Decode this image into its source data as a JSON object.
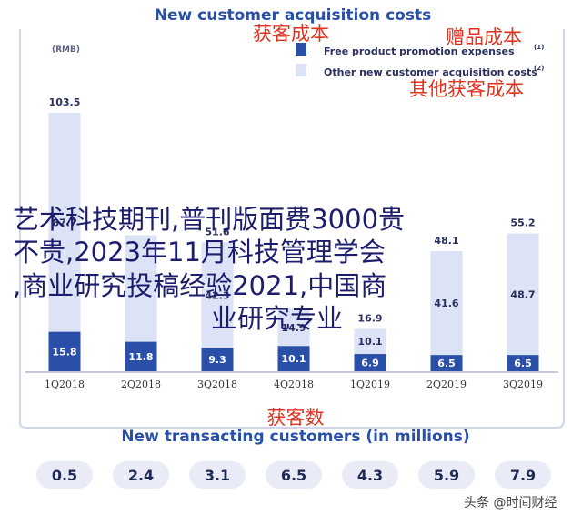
{
  "chart_data": [
    {
      "type": "bar",
      "title": "New customer acquisition costs",
      "title_cn": "获客成本",
      "unit": "(RMB)",
      "stacked": true,
      "categories": [
        "1Q2018",
        "2Q2018",
        "3Q2018",
        "4Q2018",
        "1Q2019",
        "2Q2019",
        "3Q2019"
      ],
      "series": [
        {
          "name": "Free product promotion expenses",
          "name_cn": "赠品成本",
          "superscript": "(1)",
          "color": "#2a4fa8",
          "values": [
            15.8,
            11.8,
            9.3,
            10.1,
            6.9,
            6.5,
            6.5
          ]
        },
        {
          "name": "Other new customer acquisition costs",
          "name_cn": "其他获客成本",
          "superscript": "(2)",
          "color": "#dde3f7",
          "values": [
            87.7,
            42.7,
            42.3,
            14.9,
            10.1,
            41.6,
            48.7
          ]
        }
      ],
      "totals": [
        103.5,
        54.5,
        51.6,
        25.0,
        16.9,
        48.1,
        55.2
      ],
      "total_labels": [
        "103.5",
        "",
        "51.6",
        "",
        "16.9",
        "48.1",
        "55.2"
      ],
      "other_labels": [
        "87.7",
        "",
        "42.3",
        "14.9",
        "10.1",
        "41.6",
        "48.7"
      ],
      "ylim": [
        0,
        110
      ],
      "grid": false,
      "legend_position": "top-right"
    },
    {
      "type": "table",
      "title": "New transacting customers (in millions)",
      "title_cn": "获客数",
      "categories": [
        "1Q2018",
        "2Q2018",
        "3Q2018",
        "4Q2018",
        "1Q2019",
        "2Q2019",
        "3Q2019"
      ],
      "values": [
        "0.5",
        "2.4",
        "3.1",
        "6.5",
        "4.3",
        "5.9",
        "7.9"
      ]
    }
  ],
  "overlay_text": [
    "艺术科技期刊,普刊版面费3000贵",
    "不贵,2023年11月科技管理学会",
    ",商业研究投稿经验2021,中国商",
    "业研究专业"
  ],
  "watermark": "头条 @时间财经",
  "colors": {
    "frame": "#cfd6ea",
    "pill": "#e9ecf6"
  }
}
